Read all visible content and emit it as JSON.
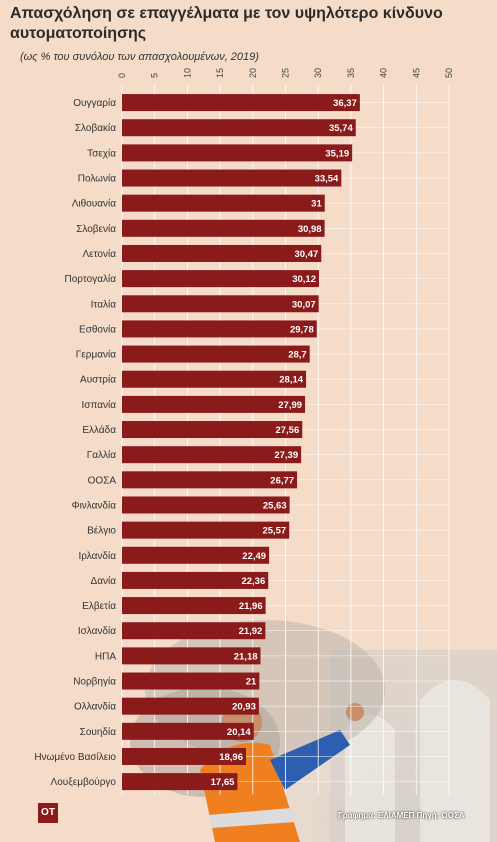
{
  "header": {
    "title": "Απασχόληση σε επαγγέλματα με τον υψηλότερο κίνδυνο αυτοματοποίησης",
    "subtitle": "(ως % του συνόλου των απασχολουμένων, 2019)"
  },
  "footer": {
    "logo": "OT",
    "source": "Γράφημα: ΕΛΙΑΜΕΠ Πηγή: ΟΟΣΑ"
  },
  "colors": {
    "bar": "#8b1a1a",
    "background": "#f4dcc8"
  },
  "chart_data": {
    "type": "bar",
    "orientation": "horizontal",
    "title": "Απασχόληση σε επαγγέλματα με τον υψηλότερο κίνδυνο αυτοματοποίησης",
    "subtitle": "(ως % του συνόλου των απασχολουμένων, 2019)",
    "xlim": [
      0,
      50
    ],
    "xticks": [
      0,
      5,
      10,
      15,
      20,
      25,
      30,
      35,
      40,
      45,
      50
    ],
    "tick_position": "top",
    "grid": true,
    "categories": [
      "Ουγγαρία",
      "Σλοβακία",
      "Τσεχία",
      "Πολωνία",
      "Λιθουανία",
      "Σλοβενία",
      "Λετονία",
      "Πορτογαλία",
      "Ιταλία",
      "Εσθονία",
      "Γερμανία",
      "Αυστρία",
      "Ισπανία",
      "Ελλάδα",
      "Γαλλία",
      "ΟΟΣΑ",
      "Φινλανδία",
      "Βέλγιο",
      "Ιρλανδία",
      "Δανία",
      "Ελβετία",
      "Ισλανδία",
      "ΗΠΑ",
      "Νορβηγία",
      "Ολλανδία",
      "Σουηδία",
      "Ηνωμένο Βασίλειο",
      "Λουξεμβούργο"
    ],
    "values": [
      36.37,
      35.74,
      35.19,
      33.54,
      31,
      30.98,
      30.47,
      30.12,
      30.07,
      29.78,
      28.7,
      28.14,
      27.99,
      27.56,
      27.39,
      26.77,
      25.63,
      25.57,
      22.49,
      22.36,
      21.96,
      21.92,
      21.18,
      21,
      20.93,
      20.14,
      18.96,
      17.65
    ],
    "labels": [
      "36,37",
      "35,74",
      "35,19",
      "33,54",
      "31",
      "30,98",
      "30,47",
      "30,12",
      "30,07",
      "29,78",
      "28,7",
      "28,14",
      "27,99",
      "27,56",
      "27,39",
      "26,77",
      "25,63",
      "25,57",
      "22,49",
      "22,36",
      "21,96",
      "21,92",
      "21,18",
      "21",
      "20,93",
      "20,14",
      "18,96",
      "17,65"
    ]
  }
}
